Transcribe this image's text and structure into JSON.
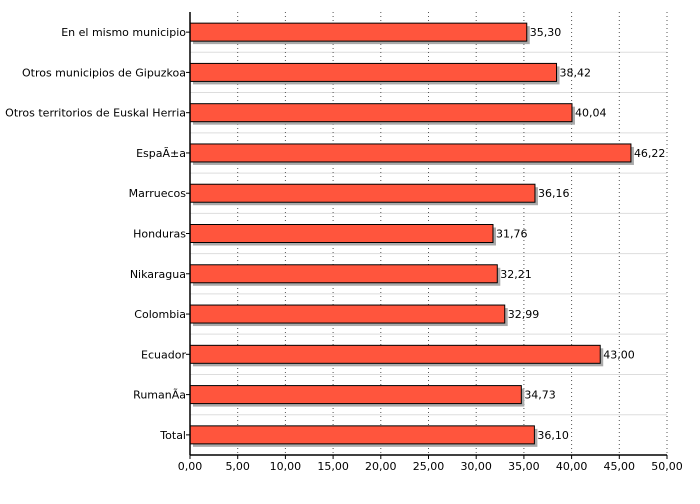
{
  "chart_data": {
    "type": "bar",
    "orientation": "horizontal",
    "categories": [
      "En el mismo municipio",
      "Otros municipios de Gipuzkoa",
      "Otros territorios de Euskal Herria",
      "EspaÃ±a",
      "Marruecos",
      "Honduras",
      "Nikaragua",
      "Colombia",
      "Ecuador",
      "RumanÃ­a",
      "Total"
    ],
    "values": [
      35.3,
      38.42,
      40.04,
      46.22,
      36.16,
      31.76,
      32.21,
      32.99,
      43.0,
      34.73,
      36.1
    ],
    "value_labels": [
      "35,30",
      "38,42",
      "40,04",
      "46,22",
      "36,16",
      "31,76",
      "32,21",
      "32,99",
      "43,00",
      "34,73",
      "36,10"
    ],
    "x_ticks": [
      "0,00",
      "5,00",
      "10,00",
      "15,00",
      "20,00",
      "25,00",
      "30,00",
      "35,00",
      "40,00",
      "45,00",
      "50,00"
    ],
    "xlim": [
      0,
      50
    ],
    "title": "",
    "xlabel": "",
    "ylabel": "",
    "grid": true,
    "colors": {
      "bar_fill": "#ff553d",
      "bar_stroke": "#000000",
      "bar_shadow": "#aaaaaa",
      "grid": "#555555"
    }
  }
}
